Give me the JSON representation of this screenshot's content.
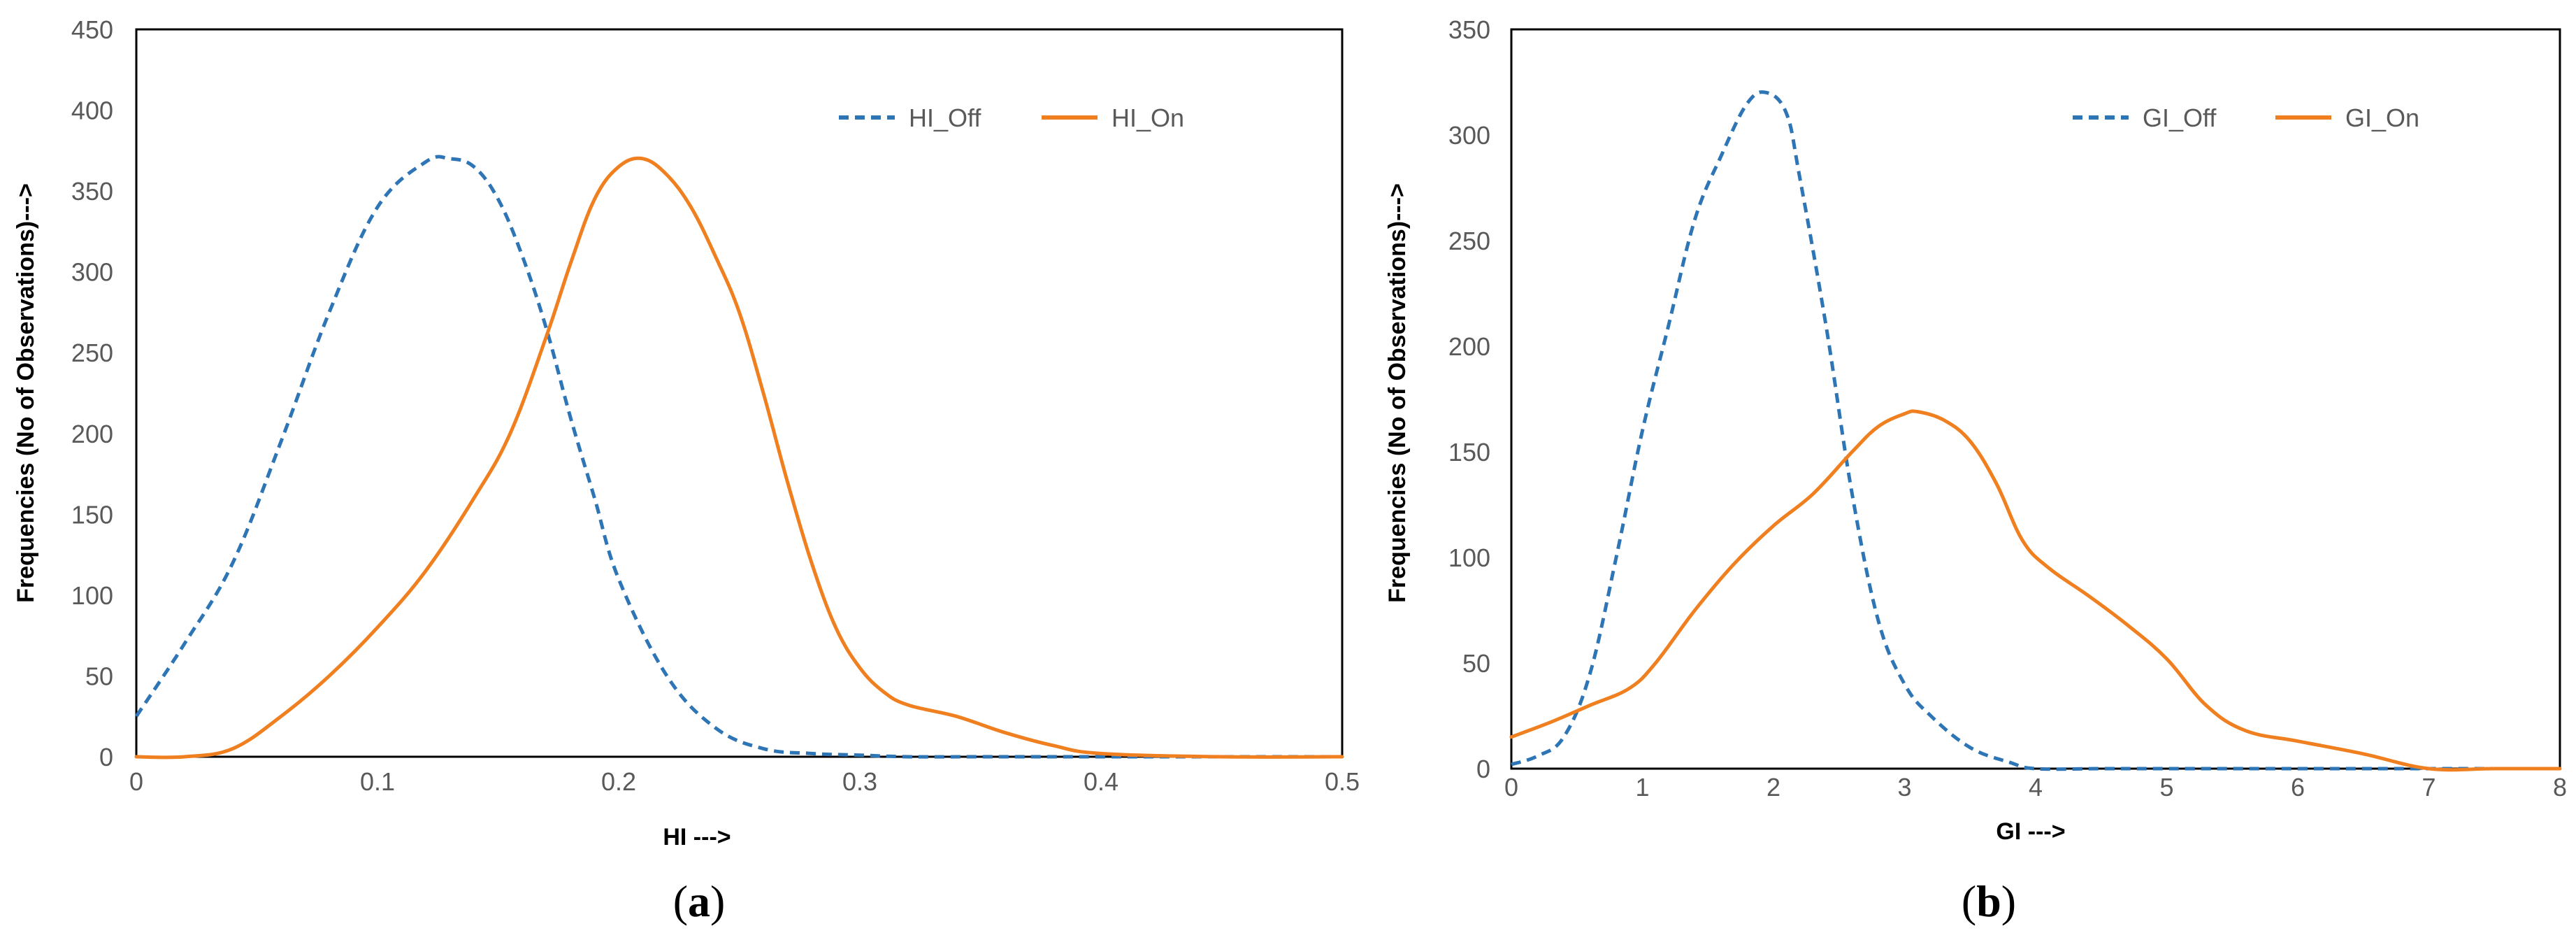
{
  "chart_data": [
    {
      "type": "line",
      "caption_letter": "a",
      "xlabel": "HI --->",
      "ylabel": "Frequencies (No of Observations)--->",
      "xlim": [
        0,
        0.5
      ],
      "ylim": [
        0,
        450
      ],
      "x_ticks": [
        "0",
        "0.1",
        "0.2",
        "0.3",
        "0.4",
        "0.5"
      ],
      "y_ticks": [
        "0",
        "50",
        "100",
        "150",
        "200",
        "250",
        "300",
        "350",
        "400",
        "450"
      ],
      "grid": false,
      "legend_position": "top-right",
      "series": [
        {
          "name": "HI_Off",
          "color": "#2E75B6",
          "style": "dashed",
          "x": [
            0,
            0.02,
            0.04,
            0.06,
            0.08,
            0.1,
            0.12,
            0.13,
            0.14,
            0.15,
            0.16,
            0.17,
            0.18,
            0.19,
            0.2,
            0.22,
            0.24,
            0.26,
            0.28,
            0.3,
            0.32,
            0.35,
            0.4,
            0.45,
            0.5
          ],
          "values": [
            25,
            70,
            120,
            195,
            275,
            340,
            368,
            370,
            365,
            345,
            310,
            265,
            210,
            160,
            110,
            50,
            18,
            5,
            2,
            1,
            0,
            0,
            0,
            0,
            0
          ]
        },
        {
          "name": "HI_On",
          "color": "#F07F20",
          "style": "solid",
          "x": [
            0,
            0.02,
            0.04,
            0.06,
            0.08,
            0.1,
            0.12,
            0.14,
            0.155,
            0.17,
            0.18,
            0.19,
            0.2,
            0.21,
            0.22,
            0.23,
            0.24,
            0.25,
            0.26,
            0.27,
            0.28,
            0.29,
            0.3,
            0.31,
            0.32,
            0.34,
            0.36,
            0.38,
            0.4,
            0.45,
            0.5
          ],
          "values": [
            0,
            0,
            5,
            25,
            50,
            80,
            115,
            160,
            200,
            260,
            305,
            345,
            365,
            370,
            360,
            340,
            310,
            275,
            225,
            170,
            120,
            80,
            55,
            40,
            32,
            25,
            15,
            7,
            2,
            0,
            0
          ]
        }
      ]
    },
    {
      "type": "line",
      "caption_letter": "b",
      "xlabel": "GI --->",
      "ylabel": "Frequencies (No of Observations)--->",
      "xlim": [
        0,
        8
      ],
      "ylim": [
        0,
        350
      ],
      "x_ticks": [
        "0",
        "1",
        "2",
        "3",
        "4",
        "5",
        "6",
        "7",
        "8"
      ],
      "y_ticks": [
        "0",
        "50",
        "100",
        "150",
        "200",
        "250",
        "300",
        "350"
      ],
      "grid": false,
      "legend_position": "top-right",
      "series": [
        {
          "name": "GI_Off",
          "color": "#2E75B6",
          "style": "dashed",
          "x": [
            0,
            0.2,
            0.4,
            0.6,
            0.8,
            1.0,
            1.2,
            1.4,
            1.6,
            1.8,
            1.95,
            2.1,
            2.2,
            2.4,
            2.6,
            2.8,
            3.0,
            3.2,
            3.5,
            3.8,
            4.0,
            4.5,
            5,
            6,
            7,
            8
          ],
          "values": [
            2,
            6,
            15,
            45,
            100,
            160,
            210,
            260,
            290,
            315,
            320,
            310,
            280,
            210,
            130,
            70,
            40,
            25,
            10,
            3,
            0,
            0,
            0,
            0,
            0,
            0
          ]
        },
        {
          "name": "GI_On",
          "color": "#F07F20",
          "style": "solid",
          "x": [
            0,
            0.3,
            0.6,
            0.9,
            1.1,
            1.4,
            1.7,
            2.0,
            2.3,
            2.6,
            2.8,
            3.0,
            3.1,
            3.3,
            3.5,
            3.7,
            3.9,
            4.1,
            4.4,
            4.7,
            5.0,
            5.3,
            5.6,
            6.0,
            6.5,
            7.0,
            7.5,
            8.0
          ],
          "values": [
            15,
            22,
            30,
            38,
            50,
            75,
            97,
            115,
            130,
            150,
            162,
            168,
            169,
            165,
            155,
            135,
            108,
            95,
            82,
            68,
            52,
            30,
            18,
            13,
            7,
            0,
            0,
            0
          ]
        }
      ]
    }
  ]
}
